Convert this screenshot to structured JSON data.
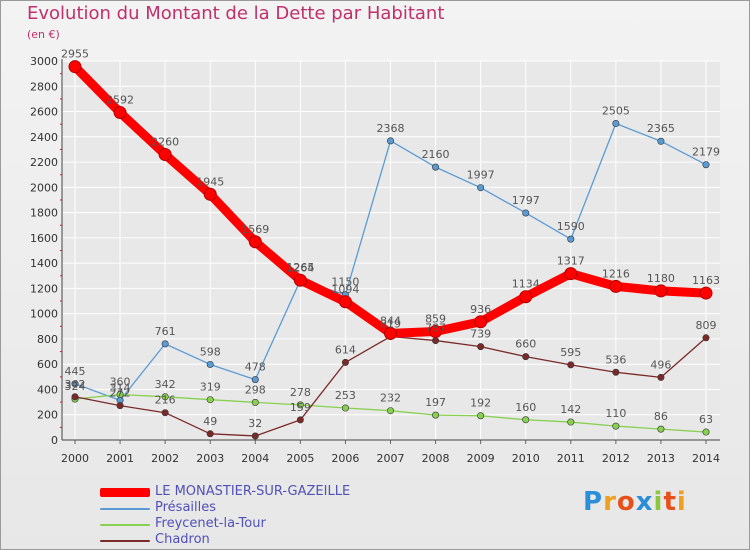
{
  "title": "Evolution du Montant de la Dette par Habitant",
  "unit_label": "(en €)",
  "brand": {
    "name": "Proxiti",
    "letters": [
      {
        "ch": "P",
        "color": "#2a8fd8"
      },
      {
        "ch": "r",
        "color": "#f0a020"
      },
      {
        "ch": "o",
        "color": "#e8501a"
      },
      {
        "ch": "x",
        "color": "#2a8fd8"
      },
      {
        "ch": "i",
        "color": "#8cc63e"
      },
      {
        "ch": "t",
        "color": "#e8501a"
      },
      {
        "ch": "i",
        "color": "#f0a020"
      }
    ]
  },
  "chart_data": {
    "type": "line",
    "title": "Evolution du Montant de la Dette par Habitant",
    "ylabel": "(en €)",
    "xlabel": "",
    "ylim": [
      0,
      3000
    ],
    "yticks": [
      0,
      200,
      400,
      600,
      800,
      1000,
      1200,
      1400,
      1600,
      1800,
      2000,
      2200,
      2400,
      2600,
      2800,
      3000
    ],
    "grid": true,
    "legend": "bottom-left",
    "categories": [
      "2000",
      "2001",
      "2002",
      "2003",
      "2004",
      "2005",
      "2006",
      "2007",
      "2008",
      "2009",
      "2010",
      "2011",
      "2012",
      "2013",
      "2014"
    ],
    "series": [
      {
        "name": "Présailles",
        "color": "#5b9bd5",
        "values": [
          445,
          314,
          761,
          598,
          478,
          1264,
          1150,
          2368,
          2160,
          1997,
          1797,
          1590,
          2505,
          2365,
          2179
        ],
        "labels": [
          "445",
          "314",
          "761",
          "598",
          "478",
          "1264",
          "1150",
          "2368",
          "2160",
          "1997",
          "1797",
          "1590",
          "2505",
          "2365",
          "2179"
        ]
      },
      {
        "name": "Freycenet-la-Tour",
        "color": "#88d050",
        "values": [
          324,
          360,
          342,
          319,
          298,
          278,
          253,
          232,
          197,
          192,
          160,
          142,
          110,
          86,
          63
        ],
        "labels": [
          "324",
          "360",
          "342",
          "319",
          "298",
          "278",
          "253",
          "232",
          "197",
          "192",
          "160",
          "142",
          "110",
          "86",
          "63"
        ]
      },
      {
        "name": "Chadron",
        "color": "#7b2a2a",
        "values": [
          342,
          272,
          216,
          49,
          32,
          159,
          614,
          819,
          787,
          739,
          660,
          595,
          536,
          496,
          809
        ],
        "labels": [
          "342",
          "272",
          "216",
          "49",
          "32",
          "159",
          "614",
          "819",
          "787",
          "739",
          "660",
          "595",
          "536",
          "496",
          "809"
        ]
      },
      {
        "name": "LE MONASTIER-SUR-GAZEILLE",
        "color": "#ff0000",
        "values": [
          2955,
          2592,
          2260,
          1945,
          1569,
          1265,
          1094,
          844,
          859,
          936,
          1134,
          1317,
          1216,
          1180,
          1163
        ],
        "labels": [
          "2955",
          "2592",
          "2260",
          "1945",
          "1569",
          "1265",
          "1094",
          "844",
          "859",
          "936",
          "1134",
          "1317",
          "1216",
          "1180",
          "1163"
        ]
      }
    ]
  },
  "legend_items": [
    {
      "label": "LE MONASTIER-SUR-GAZEILLE",
      "color": "#ff0000",
      "thick": true
    },
    {
      "label": "Présailles",
      "color": "#5b9bd5",
      "thick": false
    },
    {
      "label": "Freycenet-la-Tour",
      "color": "#88d050",
      "thick": false
    },
    {
      "label": "Chadron",
      "color": "#7b2a2a",
      "thick": false
    }
  ]
}
